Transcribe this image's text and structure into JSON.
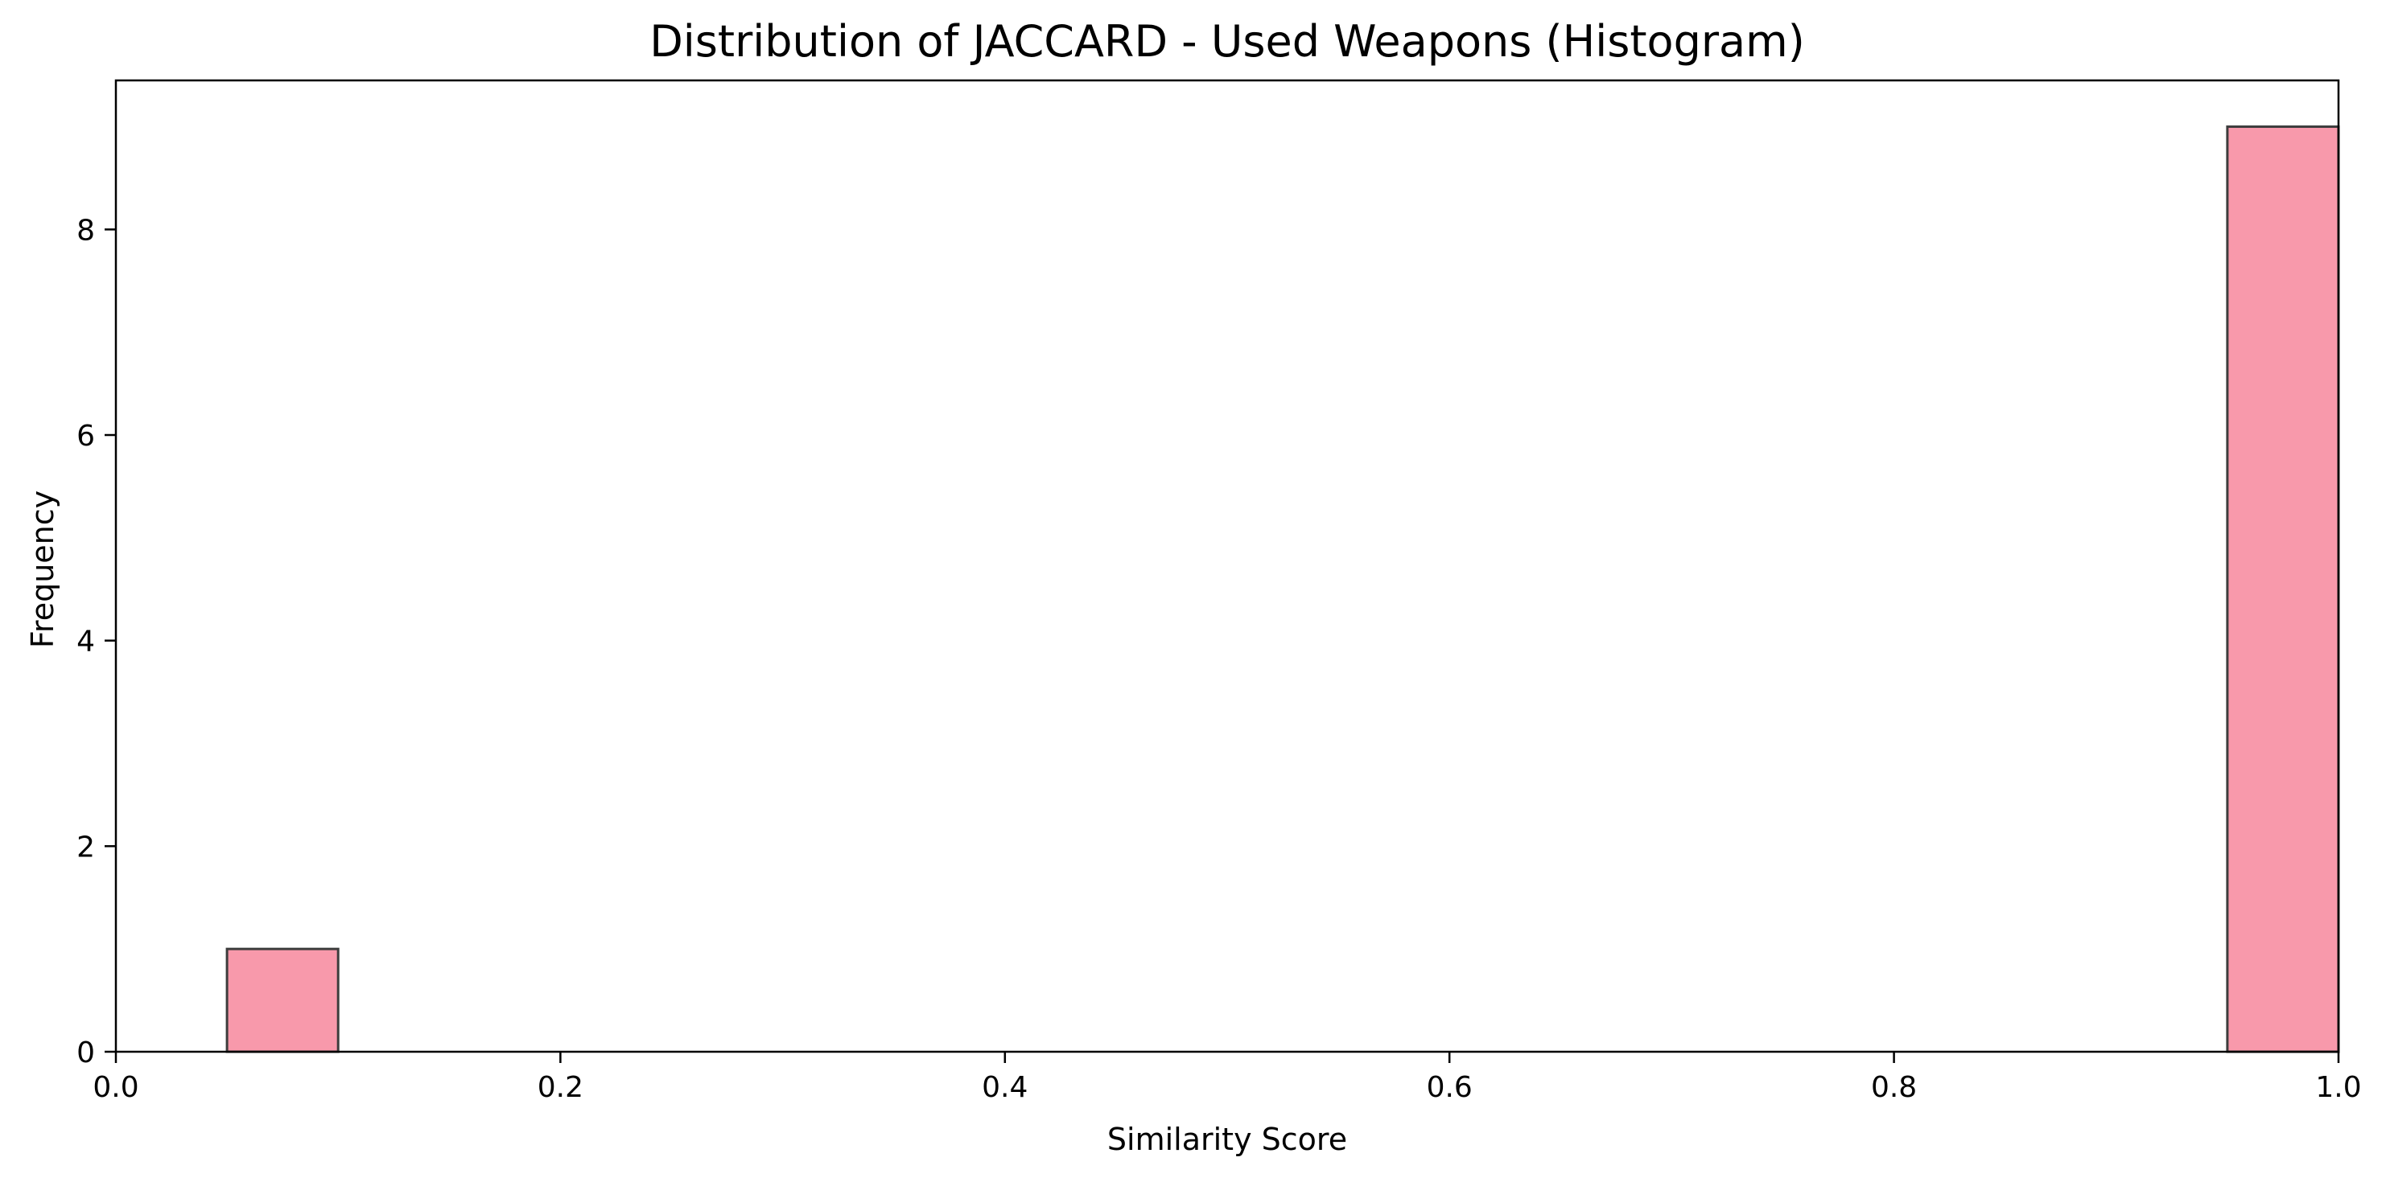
{
  "chart_data": {
    "type": "bar",
    "title": "Distribution of JACCARD - Used Weapons (Histogram)",
    "xlabel": "Similarity Score",
    "ylabel": "Frequency",
    "xlim": [
      0.0,
      1.0
    ],
    "ylim": [
      0,
      9.45
    ],
    "bin_width": 0.05,
    "bins": [
      {
        "start": 0.05,
        "end": 0.1,
        "count": 1
      },
      {
        "start": 0.95,
        "end": 1.0,
        "count": 9
      }
    ],
    "x_ticks": [
      {
        "value": 0.0,
        "label": "0.0"
      },
      {
        "value": 0.2,
        "label": "0.2"
      },
      {
        "value": 0.4,
        "label": "0.4"
      },
      {
        "value": 0.6,
        "label": "0.6"
      },
      {
        "value": 0.8,
        "label": "0.8"
      },
      {
        "value": 1.0,
        "label": "1.0"
      }
    ],
    "y_ticks": [
      {
        "value": 0,
        "label": "0"
      },
      {
        "value": 2,
        "label": "2"
      },
      {
        "value": 4,
        "label": "4"
      },
      {
        "value": 6,
        "label": "6"
      },
      {
        "value": 8,
        "label": "8"
      }
    ],
    "grid": false,
    "colors": {
      "bar_fill": "#f899ab",
      "bar_edge": "#3d3d3d",
      "axis": "#000000"
    }
  }
}
